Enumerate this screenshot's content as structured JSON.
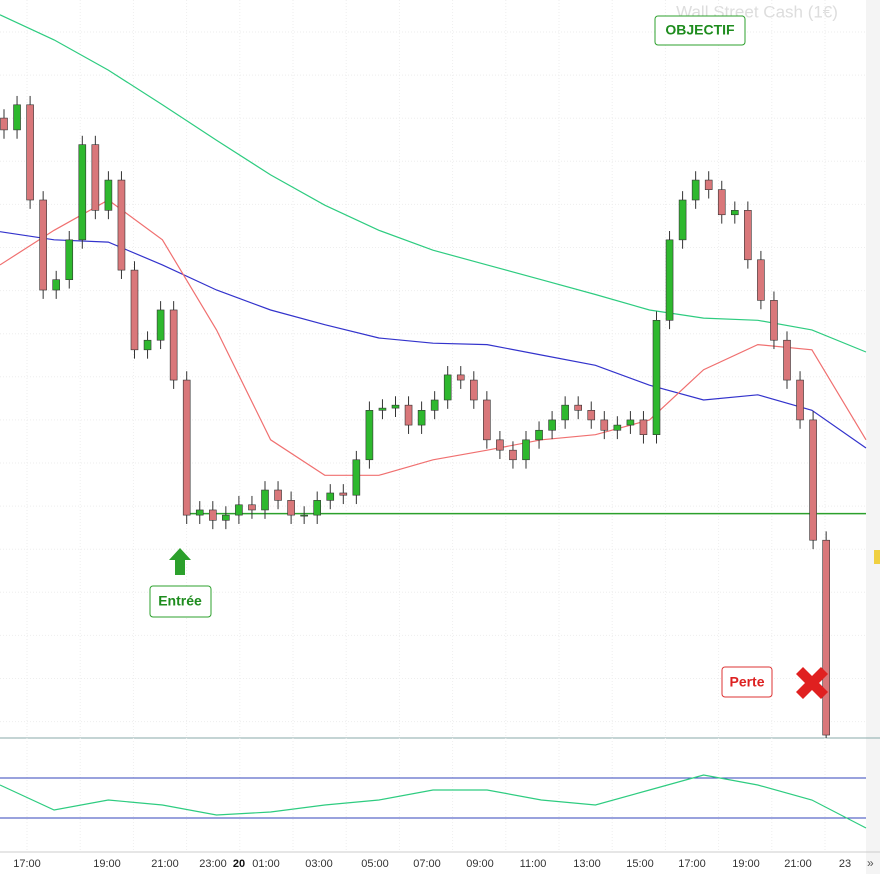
{
  "chart_data": {
    "type": "candlestick",
    "title": "Wall Street Cash (1€)",
    "open": [
      84.0,
      82.4,
      85.8,
      72.9,
      60.7,
      62.1,
      67.5,
      80.4,
      71.5,
      75.6,
      63.4,
      52.6,
      53.9,
      58.0,
      48.5,
      30.2,
      30.9,
      29.5,
      30.2,
      31.6,
      30.9,
      33.6,
      32.2,
      30.2,
      30.2,
      32.2,
      33.2,
      32.9,
      37.7,
      44.4,
      44.7,
      45.1,
      42.4,
      44.4,
      45.8,
      49.2,
      48.5,
      45.8,
      40.4,
      39.0,
      37.7,
      40.4,
      41.7,
      43.1,
      45.1,
      44.4,
      43.1,
      41.7,
      42.4,
      43.1,
      41.1,
      56.6,
      67.5,
      72.9,
      75.6,
      74.3,
      70.9,
      71.5,
      64.8,
      59.3,
      53.9,
      48.5,
      43.1,
      26.8
    ],
    "high": [
      85.2,
      87.0,
      87.0,
      74.1,
      63.3,
      68.7,
      81.6,
      81.6,
      76.8,
      76.8,
      64.6,
      55.1,
      59.2,
      59.2,
      49.7,
      32.1,
      32.1,
      31.4,
      32.8,
      32.8,
      34.8,
      34.8,
      33.4,
      31.4,
      33.4,
      34.4,
      34.4,
      38.9,
      45.6,
      45.9,
      46.3,
      46.3,
      45.6,
      47.0,
      50.4,
      50.4,
      49.7,
      47.0,
      41.6,
      40.2,
      41.6,
      42.9,
      44.3,
      46.3,
      46.3,
      45.6,
      44.3,
      43.6,
      44.3,
      44.3,
      57.8,
      68.7,
      74.1,
      76.8,
      76.8,
      75.5,
      72.7,
      72.7,
      66.0,
      60.5,
      55.1,
      49.7,
      44.3,
      28.0
    ],
    "low": [
      81.2,
      81.2,
      71.7,
      59.5,
      59.5,
      60.9,
      66.3,
      70.3,
      70.3,
      62.2,
      51.4,
      51.4,
      52.7,
      47.3,
      29.0,
      29.0,
      28.3,
      28.3,
      29.0,
      29.7,
      29.7,
      31.0,
      29.0,
      29.0,
      29.0,
      31.0,
      31.7,
      31.7,
      36.5,
      43.2,
      43.5,
      41.2,
      41.2,
      43.2,
      44.6,
      47.3,
      44.6,
      39.2,
      37.8,
      36.5,
      36.5,
      39.2,
      40.5,
      41.9,
      43.2,
      41.9,
      40.5,
      40.5,
      41.2,
      39.9,
      39.9,
      55.4,
      66.3,
      71.7,
      73.1,
      69.7,
      69.7,
      63.6,
      58.1,
      52.7,
      47.3,
      41.9,
      25.6,
      0
    ],
    "close": [
      82.4,
      85.8,
      72.9,
      60.7,
      62.1,
      67.5,
      80.4,
      71.5,
      75.6,
      63.4,
      52.6,
      53.9,
      58.0,
      48.5,
      30.2,
      30.9,
      29.5,
      30.2,
      31.6,
      30.9,
      33.6,
      32.2,
      30.2,
      30.2,
      32.2,
      33.2,
      32.9,
      37.7,
      44.4,
      44.7,
      45.1,
      42.4,
      44.4,
      45.8,
      49.2,
      48.5,
      45.8,
      40.4,
      39.0,
      37.7,
      40.4,
      41.7,
      43.1,
      45.1,
      44.4,
      43.1,
      41.7,
      42.4,
      43.1,
      41.1,
      56.6,
      67.5,
      72.9,
      75.6,
      74.3,
      70.9,
      71.5,
      64.8,
      59.3,
      53.9,
      48.5,
      43.1,
      26.8,
      0.4
    ],
    "up_color": "#2eb82e",
    "down_color": "#d9777a",
    "ylim": [
      0,
      100
    ],
    "overlays": [
      {
        "color": "#2ecc80",
        "values": [
          98.0,
          94.6,
          90.5,
          85.8,
          81.0,
          76.3,
          72.2,
          68.8,
          66.1,
          64.1,
          62.1,
          60.1,
          58.0,
          56.9,
          56.6,
          55.3,
          52.3
        ]
      },
      {
        "color": "#3333cc",
        "values": [
          68.6,
          67.5,
          67.2,
          64.1,
          60.7,
          58.0,
          56.0,
          54.2,
          53.5,
          53.3,
          51.9,
          50.5,
          47.8,
          45.8,
          46.5,
          44.4,
          39.3
        ]
      },
      {
        "color": "#f07070",
        "values": [
          64.1,
          68.8,
          72.9,
          67.5,
          55.3,
          40.4,
          35.6,
          35.6,
          37.7,
          39.0,
          40.4,
          41.1,
          43.1,
          49.9,
          53.3,
          52.6,
          40.4
        ]
      }
    ],
    "level": {
      "value": 30.4,
      "color": "#2ca02c"
    },
    "annotations": {
      "target": "OBJECTIF",
      "entry": "Entrée",
      "loss": "Perte"
    },
    "xtick_labels": [
      "17:00",
      "19:00",
      "21:00",
      "23:00",
      "01:00",
      "03:00",
      "05:00",
      "07:00",
      "09:00",
      "11:00",
      "13:00",
      "15:00",
      "17:00",
      "19:00",
      "21:00",
      "23"
    ],
    "day_label": "20",
    "rsi": {
      "ylim": [
        0,
        100
      ],
      "levels": [
        70,
        30
      ],
      "color": "#2ecc80",
      "values": [
        63,
        38,
        48,
        43,
        33,
        36,
        43,
        48,
        58,
        58,
        48,
        43,
        58,
        73,
        63,
        48,
        20
      ]
    }
  }
}
